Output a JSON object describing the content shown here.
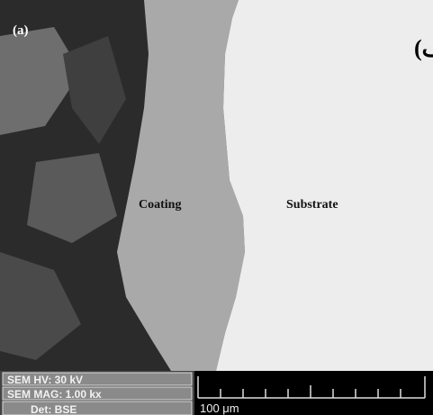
{
  "image": {
    "panel_label": "(a)",
    "persian_label": "(الف)",
    "regions": [
      "Coating",
      "Substrate"
    ]
  },
  "info_panel": {
    "rows": [
      "SEM HV: 30 kV",
      "SEM MAG: 1.00 kx",
      "Det: BSE"
    ]
  },
  "scale_bar": {
    "label": "100 μm"
  }
}
